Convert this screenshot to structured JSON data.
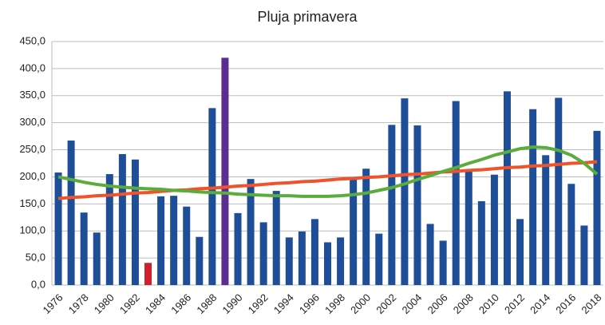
{
  "chart_data": {
    "type": "bar",
    "title": "Pluja primavera",
    "categories": [
      "1976",
      null,
      "1978",
      null,
      "1980",
      null,
      "1982",
      null,
      "1984",
      null,
      "1986",
      null,
      "1988",
      null,
      "1990",
      null,
      "1992",
      null,
      "1994",
      null,
      "1996",
      null,
      "1998",
      null,
      "2000",
      null,
      "2002",
      null,
      "2004",
      null,
      "2006",
      null,
      "2008",
      null,
      "2010",
      null,
      "2012",
      null,
      "2014",
      null,
      "2016",
      null,
      "2018"
    ],
    "values": [
      208,
      267,
      134,
      97,
      205,
      242,
      232,
      41,
      164,
      165,
      145,
      89,
      327,
      420,
      133,
      196,
      116,
      174,
      88,
      99,
      122,
      79,
      88,
      198,
      215,
      95,
      296,
      345,
      295,
      113,
      82,
      340,
      212,
      155,
      204,
      358,
      122,
      325,
      240,
      346,
      187,
      110,
      285
    ],
    "colors": [
      "#1f4e99",
      "#1f4e99",
      "#1f4e99",
      "#1f4e99",
      "#1f4e99",
      "#1f4e99",
      "#1f4e99",
      "#d0202a",
      "#1f4e99",
      "#1f4e99",
      "#1f4e99",
      "#1f4e99",
      "#1f4e99",
      "#5b2d8e",
      "#1f4e99",
      "#1f4e99",
      "#1f4e99",
      "#1f4e99",
      "#1f4e99",
      "#1f4e99",
      "#1f4e99",
      "#1f4e99",
      "#1f4e99",
      "#1f4e99",
      "#1f4e99",
      "#1f4e99",
      "#1f4e99",
      "#1f4e99",
      "#1f4e99",
      "#1f4e99",
      "#1f4e99",
      "#1f4e99",
      "#1f4e99",
      "#1f4e99",
      "#1f4e99",
      "#1f4e99",
      "#1f4e99",
      "#1f4e99",
      "#1f4e99",
      "#1f4e99",
      "#1f4e99",
      "#1f4e99",
      "#1f4e99"
    ],
    "trend_lines": [
      {
        "color": "#f0522a",
        "values": [
          160,
          162,
          163,
          165,
          166,
          168,
          170,
          171,
          173,
          175,
          176,
          178,
          179,
          181,
          183,
          184,
          186,
          188,
          189,
          191,
          192,
          194,
          196,
          197,
          199,
          200,
          202,
          204,
          205,
          207,
          209,
          210,
          212,
          213,
          215,
          217,
          218,
          220,
          221,
          223,
          225,
          226,
          228
        ]
      },
      {
        "color": "#5aac3c",
        "values": [
          200,
          195,
          190,
          186,
          183,
          181,
          179,
          178,
          177,
          175,
          174,
          172,
          171,
          170,
          168,
          167,
          166,
          165,
          165,
          164,
          164,
          164,
          165,
          167,
          170,
          175,
          180,
          187,
          195,
          202,
          210,
          217,
          225,
          232,
          240,
          246,
          252,
          255,
          254,
          249,
          240,
          225,
          205
        ]
      }
    ],
    "ylim": [
      0,
      450
    ],
    "yticks": [
      {
        "value": 0,
        "label": "0,0"
      },
      {
        "value": 50,
        "label": "50,0"
      },
      {
        "value": 100,
        "label": "100,0"
      },
      {
        "value": 150,
        "label": "150,0"
      },
      {
        "value": 200,
        "label": "200,0"
      },
      {
        "value": 250,
        "label": "250,0"
      },
      {
        "value": 300,
        "label": "300,0"
      },
      {
        "value": 350,
        "label": "350,0"
      },
      {
        "value": 400,
        "label": "400,0"
      },
      {
        "value": 450,
        "label": "450,0"
      }
    ],
    "grid": true
  }
}
